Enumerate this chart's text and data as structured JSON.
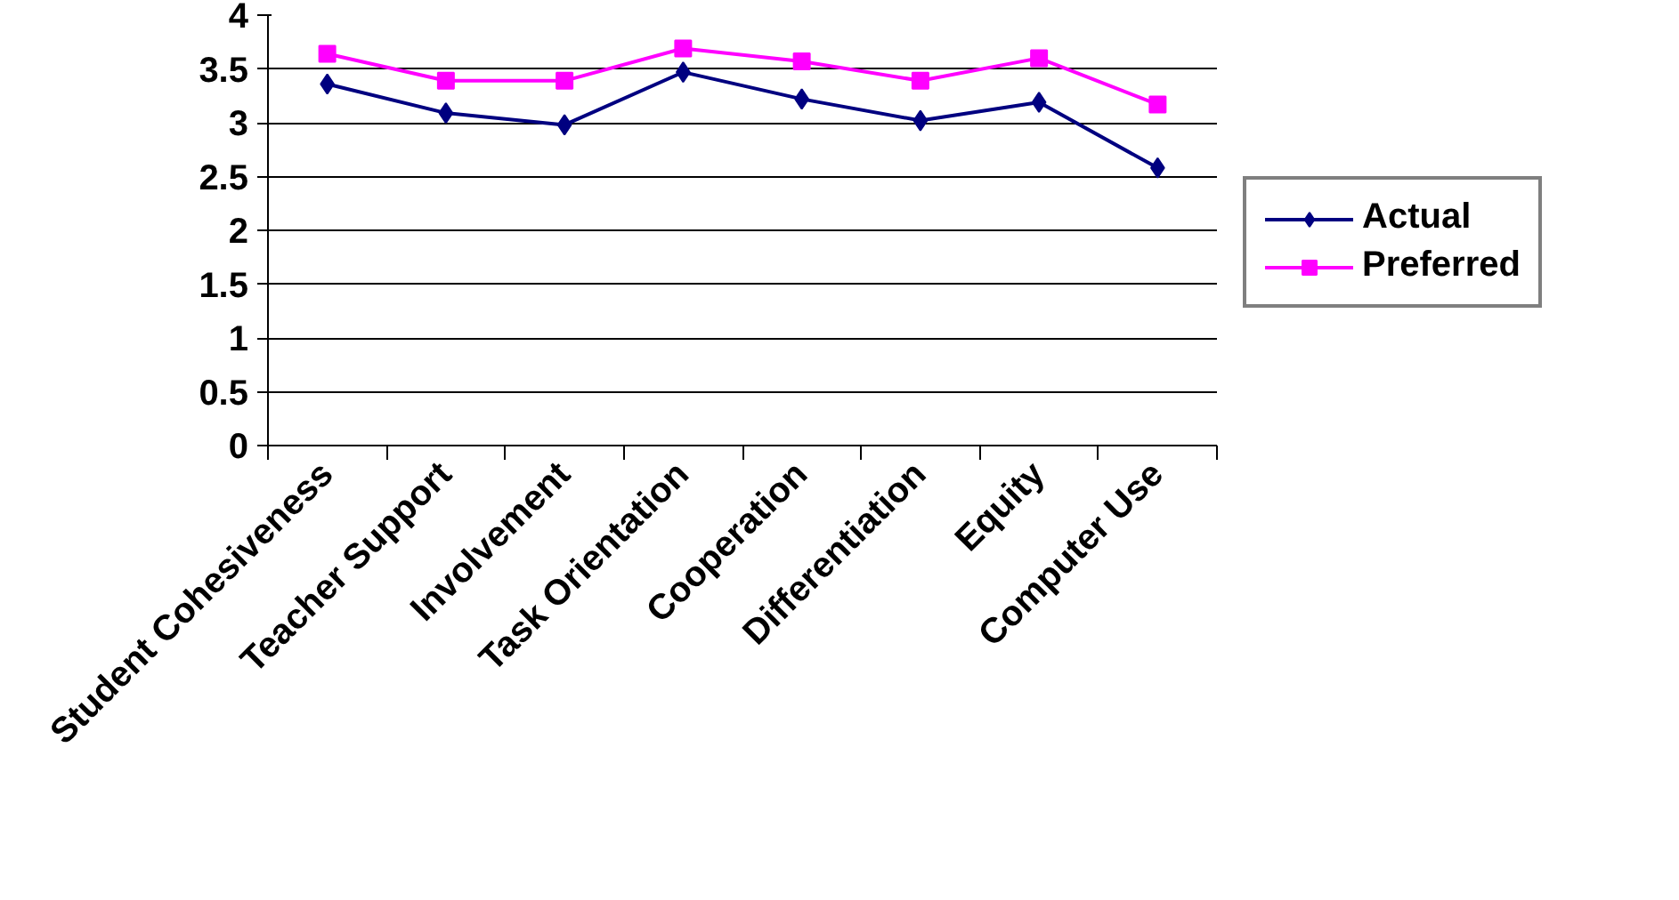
{
  "chart_data": {
    "type": "line",
    "categories": [
      "Student Cohesiveness",
      "Teacher Support",
      "Involvement",
      "Task Orientation",
      "Cooperation",
      "Differentiation",
      "Equity",
      "Computer Use"
    ],
    "series": [
      {
        "name": "Actual",
        "color": "#000080",
        "marker": "diamond",
        "values": [
          3.36,
          3.09,
          2.98,
          3.47,
          3.22,
          3.02,
          3.19,
          2.58
        ]
      },
      {
        "name": "Preferred",
        "color": "#ff00ff",
        "marker": "square",
        "values": [
          3.64,
          3.39,
          3.39,
          3.69,
          3.57,
          3.39,
          3.6,
          3.17
        ]
      }
    ],
    "ylim": [
      0,
      4
    ],
    "yticks": [
      0,
      0.5,
      1,
      1.5,
      2,
      2.5,
      3,
      3.5,
      4
    ],
    "grid": "y",
    "legend": "right"
  }
}
